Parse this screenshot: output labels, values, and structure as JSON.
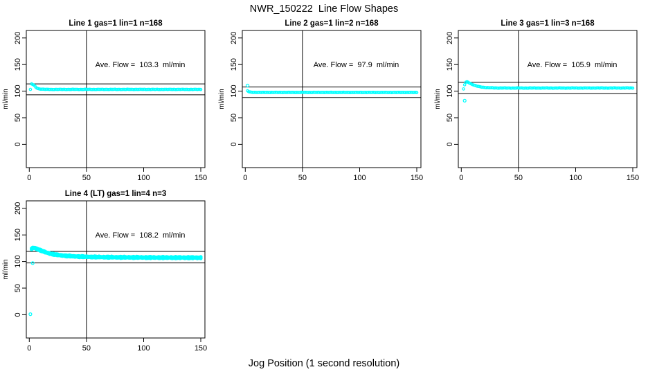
{
  "figure": {
    "title": "NWR_150222  Line Flow Shapes",
    "xlabel": "Jog Position (1 second resolution)",
    "background": "#ffffff",
    "line_color": "#000000"
  },
  "chart_data": [
    {
      "type": "scatter",
      "title": "Line 1 gas=1 lin=1 n=168",
      "annotation": "Ave. Flow =  103.3  ml/min",
      "ave_flow_ml_min": 103.3,
      "n": 168,
      "gas": 1,
      "lin": 1,
      "ylabel": "ml/min",
      "xlim": [
        0,
        150
      ],
      "ylim": [
        0,
        200
      ],
      "xticks": [
        0,
        50,
        100,
        150
      ],
      "yticks": [
        0,
        50,
        100,
        150,
        200
      ],
      "vline_x": 50,
      "hlines": [
        113.6,
        93.0
      ],
      "marker_color": "#00FFFF",
      "traces": 1,
      "noise_amp": 0.3,
      "x_range": [
        1,
        150
      ],
      "series_knots": [
        [
          1,
          103
        ],
        [
          2,
          113.5
        ],
        [
          3,
          112.5
        ],
        [
          4,
          111
        ],
        [
          5,
          109
        ],
        [
          6,
          106.5
        ],
        [
          8,
          104.5
        ],
        [
          10,
          103.8
        ],
        [
          14,
          103.3
        ],
        [
          20,
          103.2
        ],
        [
          150,
          103.2
        ]
      ],
      "outliers": []
    },
    {
      "type": "scatter",
      "title": "Line 2 gas=1 lin=2 n=168",
      "annotation": "Ave. Flow =  97.9  ml/min",
      "ave_flow_ml_min": 97.9,
      "n": 168,
      "gas": 1,
      "lin": 2,
      "ylabel": "ml/min",
      "xlim": [
        0,
        150
      ],
      "ylim": [
        0,
        200
      ],
      "xticks": [
        0,
        50,
        100,
        150
      ],
      "yticks": [
        0,
        50,
        100,
        150,
        200
      ],
      "vline_x": 50,
      "hlines": [
        107.7,
        88.1
      ],
      "marker_color": "#00FFFF",
      "traces": 1,
      "noise_amp": 0.25,
      "x_range": [
        2,
        150
      ],
      "series_knots": [
        [
          2,
          100.5
        ],
        [
          3,
          99
        ],
        [
          4,
          98.3
        ],
        [
          6,
          97.8
        ],
        [
          10,
          97.6
        ],
        [
          150,
          97.5
        ]
      ],
      "outliers": [
        [
          2,
          110.5
        ]
      ]
    },
    {
      "type": "scatter",
      "title": "Line 3 gas=1 lin=3 n=168",
      "annotation": "Ave. Flow =  105.9  ml/min",
      "ave_flow_ml_min": 105.9,
      "n": 168,
      "gas": 1,
      "lin": 3,
      "ylabel": "ml/min",
      "xlim": [
        0,
        150
      ],
      "ylim": [
        0,
        200
      ],
      "xticks": [
        0,
        50,
        100,
        150
      ],
      "yticks": [
        0,
        50,
        100,
        150,
        200
      ],
      "vline_x": 50,
      "hlines": [
        116.5,
        95.3
      ],
      "marker_color": "#00FFFF",
      "traces": 1,
      "noise_amp": 0.35,
      "x_range": [
        2,
        150
      ],
      "series_knots": [
        [
          2,
          104
        ],
        [
          3,
          112
        ],
        [
          4,
          116.5
        ],
        [
          5,
          117.5
        ],
        [
          6,
          116.8
        ],
        [
          7,
          115.5
        ],
        [
          8,
          114.3
        ],
        [
          10,
          112.3
        ],
        [
          12,
          110.5
        ],
        [
          15,
          108.7
        ],
        [
          18,
          107.5
        ],
        [
          22,
          106.6
        ],
        [
          28,
          106
        ],
        [
          40,
          105.8
        ],
        [
          80,
          105.8
        ],
        [
          150,
          105.9
        ]
      ],
      "outliers": [
        [
          3,
          82
        ]
      ]
    },
    {
      "type": "scatter",
      "title": "Line 4 (LT) gas=1 lin=4 n=3",
      "annotation": "Ave. Flow =  108.2  ml/min",
      "ave_flow_ml_min": 108.2,
      "n": 3,
      "gas": 1,
      "lin": 4,
      "ylabel": "ml/min",
      "xlim": [
        0,
        150
      ],
      "ylim": [
        0,
        200
      ],
      "xticks": [
        0,
        50,
        100,
        150
      ],
      "yticks": [
        0,
        50,
        100,
        150,
        200
      ],
      "vline_x": 50,
      "hlines": [
        119.0,
        97.4
      ],
      "marker_color": "#00FFFF",
      "traces": 3,
      "noise_amp": 0.8,
      "x_range": [
        2,
        150
      ],
      "series_knots": [
        [
          2,
          123.5
        ],
        [
          3,
          125.5
        ],
        [
          4,
          126
        ],
        [
          5,
          125.3
        ],
        [
          6,
          124.4
        ],
        [
          8,
          122.6
        ],
        [
          10,
          120.8
        ],
        [
          13,
          118.3
        ],
        [
          16,
          116.2
        ],
        [
          20,
          114.1
        ],
        [
          24,
          112.6
        ],
        [
          28,
          111.5
        ],
        [
          33,
          110.5
        ],
        [
          40,
          109.6
        ],
        [
          48,
          109
        ],
        [
          58,
          108.5
        ],
        [
          70,
          108.1
        ],
        [
          85,
          107.8
        ],
        [
          100,
          107.6
        ],
        [
          120,
          107.4
        ],
        [
          150,
          107.2
        ]
      ],
      "outliers": [
        [
          3,
          97
        ],
        [
          1,
          1
        ]
      ]
    }
  ]
}
